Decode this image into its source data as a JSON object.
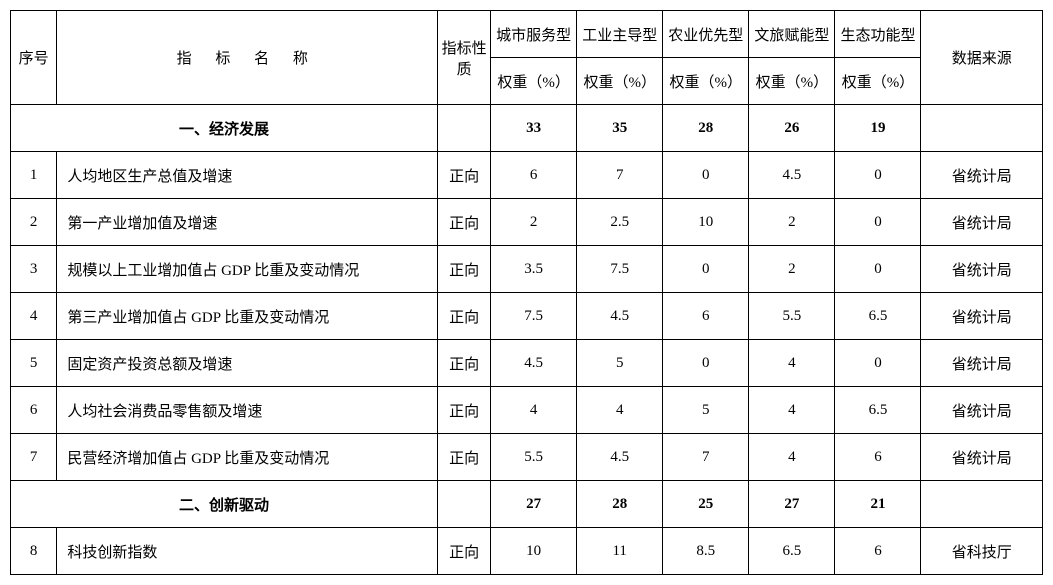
{
  "header": {
    "seq": "序号",
    "name": "指 标  名 称",
    "nature": "指标性质",
    "types": [
      "城市服务型",
      "工业主导型",
      "农业优先型",
      "文旅赋能型",
      "生态功能型"
    ],
    "weight_label": "权重（%）",
    "source": "数据来源"
  },
  "sections": [
    {
      "title": "一、经济发展",
      "weights": [
        "33",
        "35",
        "28",
        "26",
        "19"
      ],
      "rows": [
        {
          "seq": "1",
          "name": "人均地区生产总值及增速",
          "nature": "正向",
          "w": [
            "6",
            "7",
            "0",
            "4.5",
            "0"
          ],
          "src": "省统计局"
        },
        {
          "seq": "2",
          "name": "第一产业增加值及增速",
          "nature": "正向",
          "w": [
            "2",
            "2.5",
            "10",
            "2",
            "0"
          ],
          "src": "省统计局"
        },
        {
          "seq": "3",
          "name": "规模以上工业增加值占 GDP 比重及变动情况",
          "nature": "正向",
          "w": [
            "3.5",
            "7.5",
            "0",
            "2",
            "0"
          ],
          "src": "省统计局"
        },
        {
          "seq": "4",
          "name": "第三产业增加值占 GDP 比重及变动情况",
          "nature": "正向",
          "w": [
            "7.5",
            "4.5",
            "6",
            "5.5",
            "6.5"
          ],
          "src": "省统计局"
        },
        {
          "seq": "5",
          "name": "固定资产投资总额及增速",
          "nature": "正向",
          "w": [
            "4.5",
            "5",
            "0",
            "4",
            "0"
          ],
          "src": "省统计局"
        },
        {
          "seq": "6",
          "name": "人均社会消费品零售额及增速",
          "nature": "正向",
          "w": [
            "4",
            "4",
            "5",
            "4",
            "6.5"
          ],
          "src": "省统计局"
        },
        {
          "seq": "7",
          "name": "民营经济增加值占 GDP 比重及变动情况",
          "nature": "正向",
          "w": [
            "5.5",
            "4.5",
            "7",
            "4",
            "6"
          ],
          "src": "省统计局"
        }
      ]
    },
    {
      "title": "二、创新驱动",
      "weights": [
        "27",
        "28",
        "25",
        "27",
        "21"
      ],
      "rows": [
        {
          "seq": "8",
          "name": "科技创新指数",
          "nature": "正向",
          "w": [
            "10",
            "11",
            "8.5",
            "6.5",
            "6"
          ],
          "src": "省科技厅"
        }
      ]
    }
  ]
}
